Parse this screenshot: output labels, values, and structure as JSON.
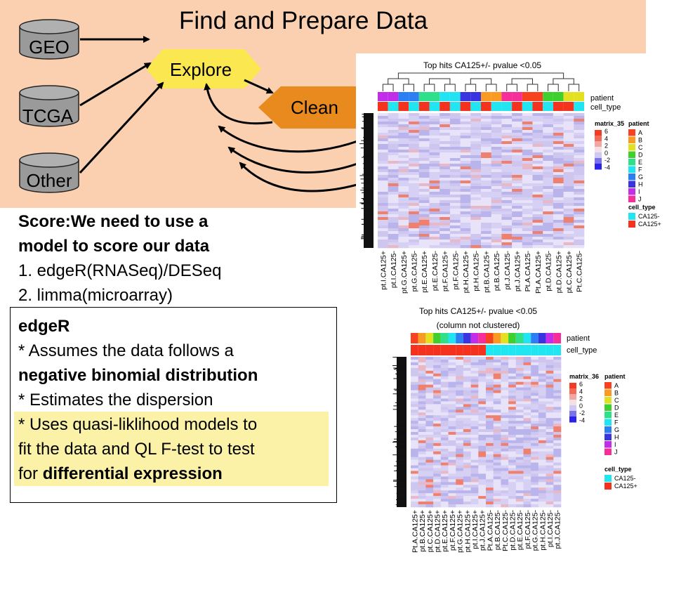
{
  "title": "Find and Prepare Data",
  "sources": [
    "GEO",
    "TCGA",
    "Other"
  ],
  "steps": {
    "explore": "Explore",
    "clean": "Clean"
  },
  "score": {
    "heading_line1": "Score:We need to use a",
    "heading_line2": "model to score our data",
    "item1": "1. edgeR(RNASeq)/DESeq",
    "item2": "2. limma(microarray)"
  },
  "edger": {
    "title": "edgeR",
    "l1_a": "* Assumes the data follows a",
    "l2_b": "negative binomial distribution",
    "l3_a": "* Estimates the dispersion",
    "l4_a": "* Uses quasi-liklihood models to",
    "l5_a": "fit the data and QL F-test to test",
    "l6_a": "for ",
    "l6_b": "differential expression"
  },
  "colors": {
    "banner": "#fbd0b0",
    "explore": "#fbe850",
    "clean": "#e88a1e",
    "cylinder": "#999999",
    "highlight": "#fbf2a8"
  },
  "heatmap1": {
    "title": "Top hits CA125+/- pvalue <0.05",
    "subtitle": "",
    "annotation_labels": [
      "patient",
      "cell_type"
    ],
    "legend_title": "matrix_35",
    "scale_ticks": [
      "6",
      "4",
      "2",
      "0",
      "-2",
      "-4"
    ],
    "patient_legend_title": "patient",
    "patients": [
      "A",
      "B",
      "C",
      "D",
      "E",
      "F",
      "G",
      "H",
      "I",
      "J"
    ],
    "celltype_legend_title": "cell_type",
    "cell_types": [
      "CA125-",
      "CA125+"
    ],
    "column_labels": [
      "pt.I.CA125+",
      "pt.I.CA125-",
      "pt.G.CA125+",
      "pt.G.CA125-",
      "pt.E.CA125+",
      "pt.E.CA125-",
      "pt.F.CA125+",
      "pt.F.CA125-",
      "pt.H.CA125+",
      "pt.H.CA125-",
      "pt.B.CA125+",
      "pt.B.CA125-",
      "pt.J.CA125-",
      "pt.J.CA125+",
      "Pt.A.CA125-",
      "Pt.A.CA125+",
      "pt.D.CA125-",
      "pt.D.CA125+",
      "pt.C.CA125+",
      "Pt.C.CA125-"
    ]
  },
  "heatmap2": {
    "title": "Top hits CA125+/- pvalue <0.05",
    "subtitle": "(column not clustered)",
    "annotation_labels": [
      "patient",
      "cell_type"
    ],
    "legend_title": "matrix_36",
    "scale_ticks": [
      "6",
      "4",
      "2",
      "0",
      "-2",
      "-4"
    ],
    "patient_legend_title": "patient",
    "patients": [
      "A",
      "B",
      "C",
      "D",
      "E",
      "F",
      "G",
      "H",
      "I",
      "J"
    ],
    "celltype_legend_title": "cell_type",
    "cell_types": [
      "CA125-",
      "CA125+"
    ],
    "column_labels": [
      "Pt.A.CA125+",
      "pt.B.CA125+",
      "pt.C.CA125+",
      "pt.D.CA125+",
      "pt.E.CA125+",
      "pt.F.CA125+",
      "pt.G.CA125+",
      "pt.H.CA125+",
      "pt.I.CA125+",
      "pt.J.CA125+",
      "Pt.A.CA125-",
      "pt.B.CA125-",
      "Pt.C.CA125-",
      "pt.D.CA125-",
      "pt.E.CA125-",
      "pt.F.CA125-",
      "pt.G.CA125-",
      "pt.H.CA125-",
      "pt.I.CA125-",
      "pt.J.CA125-"
    ]
  },
  "patient_colors": [
    "#f8411f",
    "#f99a22",
    "#e2e020",
    "#3fd030",
    "#2fe08a",
    "#21e3f2",
    "#2b7ff2",
    "#3a33e0",
    "#c22de8",
    "#f52e9a"
  ],
  "celltype_colors": [
    "#21e6f2",
    "#f4321e"
  ]
}
